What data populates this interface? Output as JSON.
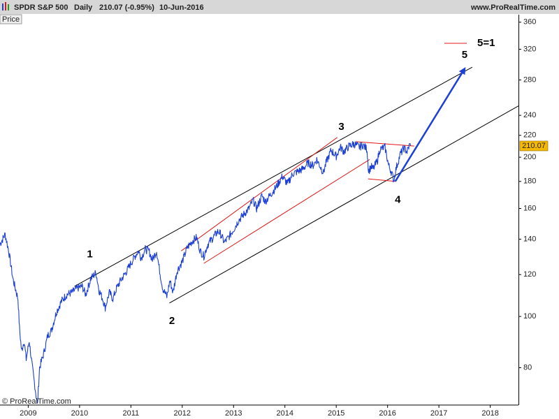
{
  "header": {
    "symbol": "SPDR S&P 500",
    "period": "Daily",
    "quote": "210.07 (-0.95%)",
    "date": "10-Jun-2016",
    "site": "www.ProRealTime.com"
  },
  "price_label": "Price",
  "copyright": "© ProRealTime.com",
  "chart_data": {
    "type": "line",
    "ylog": true,
    "xlim": [
      2008.45,
      2018.55
    ],
    "ylim": [
      68,
      372
    ],
    "x_ticks": [
      2009,
      2010,
      2011,
      2012,
      2013,
      2014,
      2015,
      2016,
      2017,
      2018
    ],
    "x_tick_labels": [
      "2009",
      "2010",
      "2011",
      "2012",
      "2013",
      "2014",
      "2015",
      "2016",
      "2017",
      "2018"
    ],
    "y_ticks": [
      80,
      100,
      120,
      140,
      160,
      180,
      200,
      220,
      240,
      280,
      320,
      360
    ],
    "y_tick_labels": [
      "80",
      "100",
      "120",
      "140",
      "160",
      "180",
      "200",
      "220",
      "240",
      "280",
      "320",
      "360"
    ],
    "last_value": 210.07,
    "last_value_label": "210.07",
    "series": [
      {
        "color": "#1c3fd6",
        "points": [
          [
            2008.45,
            137
          ],
          [
            2008.55,
            143
          ],
          [
            2008.62,
            133
          ],
          [
            2008.7,
            118
          ],
          [
            2008.8,
            108
          ],
          [
            2008.83,
            95
          ],
          [
            2008.87,
            86
          ],
          [
            2008.92,
            90
          ],
          [
            2008.96,
            83
          ],
          [
            2009.02,
            90
          ],
          [
            2009.08,
            80
          ],
          [
            2009.12,
            75
          ],
          [
            2009.18,
            68
          ],
          [
            2009.22,
            80
          ],
          [
            2009.3,
            85
          ],
          [
            2009.38,
            92
          ],
          [
            2009.45,
            94
          ],
          [
            2009.55,
            102
          ],
          [
            2009.65,
            107
          ],
          [
            2009.75,
            110
          ],
          [
            2009.85,
            111
          ],
          [
            2009.95,
            113
          ],
          [
            2010.05,
            114
          ],
          [
            2010.12,
            110
          ],
          [
            2010.22,
            118
          ],
          [
            2010.32,
            121
          ],
          [
            2010.38,
            112
          ],
          [
            2010.45,
            108
          ],
          [
            2010.5,
            104
          ],
          [
            2010.58,
            111
          ],
          [
            2010.65,
            108
          ],
          [
            2010.72,
            113
          ],
          [
            2010.8,
            117
          ],
          [
            2010.9,
            121
          ],
          [
            2011.0,
            126
          ],
          [
            2011.1,
            131
          ],
          [
            2011.15,
            133
          ],
          [
            2011.2,
            129
          ],
          [
            2011.28,
            134
          ],
          [
            2011.35,
            133
          ],
          [
            2011.42,
            128
          ],
          [
            2011.5,
            133
          ],
          [
            2011.56,
            122
          ],
          [
            2011.62,
            113
          ],
          [
            2011.7,
            109
          ],
          [
            2011.76,
            117
          ],
          [
            2011.82,
            111
          ],
          [
            2011.9,
            122
          ],
          [
            2012.0,
            127
          ],
          [
            2012.1,
            135
          ],
          [
            2012.2,
            139
          ],
          [
            2012.28,
            141
          ],
          [
            2012.35,
            133
          ],
          [
            2012.42,
            130
          ],
          [
            2012.5,
            137
          ],
          [
            2012.6,
            141
          ],
          [
            2012.7,
            145
          ],
          [
            2012.75,
            143
          ],
          [
            2012.82,
            138
          ],
          [
            2012.9,
            141
          ],
          [
            2013.0,
            146
          ],
          [
            2013.1,
            152
          ],
          [
            2013.2,
            156
          ],
          [
            2013.3,
            160
          ],
          [
            2013.38,
            166
          ],
          [
            2013.45,
            160
          ],
          [
            2013.55,
            169
          ],
          [
            2013.62,
            165
          ],
          [
            2013.72,
            170
          ],
          [
            2013.82,
            175
          ],
          [
            2013.95,
            184
          ],
          [
            2014.05,
            178
          ],
          [
            2014.15,
            186
          ],
          [
            2014.25,
            188
          ],
          [
            2014.35,
            190
          ],
          [
            2014.45,
            195
          ],
          [
            2014.55,
            193
          ],
          [
            2014.62,
            198
          ],
          [
            2014.75,
            187
          ],
          [
            2014.8,
            195
          ],
          [
            2014.9,
            206
          ],
          [
            2015.0,
            201
          ],
          [
            2015.08,
            209
          ],
          [
            2015.15,
            205
          ],
          [
            2015.25,
            210
          ],
          [
            2015.35,
            212
          ],
          [
            2015.45,
            209
          ],
          [
            2015.52,
            211
          ],
          [
            2015.6,
            207
          ],
          [
            2015.63,
            188
          ],
          [
            2015.68,
            192
          ],
          [
            2015.72,
            190
          ],
          [
            2015.8,
            197
          ],
          [
            2015.85,
            207
          ],
          [
            2015.95,
            209
          ],
          [
            2016.02,
            193
          ],
          [
            2016.08,
            187
          ],
          [
            2016.12,
            181
          ],
          [
            2016.17,
            191
          ],
          [
            2016.25,
            203
          ],
          [
            2016.32,
            208
          ],
          [
            2016.38,
            205
          ],
          [
            2016.43,
            211
          ],
          [
            2016.45,
            210.07
          ]
        ]
      }
    ],
    "channels": [
      {
        "color": "#000000",
        "from": [
          2009.9,
          114
        ],
        "to": [
          2017.65,
          296
        ]
      },
      {
        "color": "#000000",
        "from": [
          2011.75,
          106
        ],
        "to": [
          2018.55,
          250
        ]
      },
      {
        "color": "#e01818",
        "from": [
          2011.98,
          133
        ],
        "to": [
          2015.02,
          218
        ]
      },
      {
        "color": "#e01818",
        "from": [
          2012.42,
          126
        ],
        "to": [
          2015.65,
          198
        ]
      },
      {
        "color": "#e01818",
        "from": [
          2015.38,
          214
        ],
        "to": [
          2016.52,
          210
        ]
      },
      {
        "color": "#e01818",
        "from": [
          2015.62,
          182
        ],
        "to": [
          2016.15,
          180
        ]
      }
    ],
    "projection": {
      "color": "#1c3fd6",
      "from": [
        2016.15,
        180
      ],
      "to": [
        2017.52,
        296
      ]
    },
    "annotations": [
      {
        "text": "1",
        "x": 2010.2,
        "y": 131
      },
      {
        "text": "2",
        "x": 2011.8,
        "y": 98
      },
      {
        "text": "3",
        "x": 2015.1,
        "y": 228
      },
      {
        "text": "4",
        "x": 2016.2,
        "y": 166
      },
      {
        "text": "5",
        "x": 2017.5,
        "y": 312
      }
    ],
    "legend": {
      "label": "5=1",
      "color": "#e01818"
    }
  }
}
